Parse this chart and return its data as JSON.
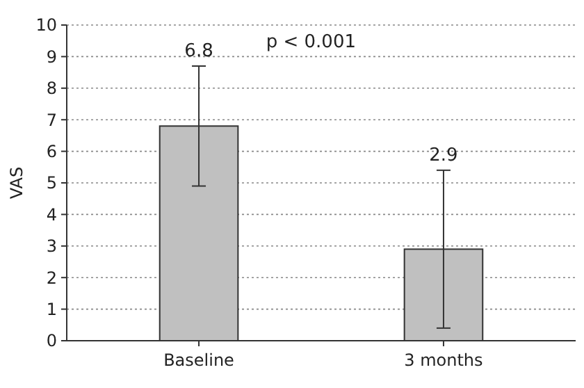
{
  "chart_data": {
    "type": "bar",
    "ylabel": "VAS",
    "categories": [
      "Baseline",
      "3 months"
    ],
    "values": [
      6.8,
      2.9
    ],
    "errors": [
      1.9,
      2.5
    ],
    "color": "#c0c0c0",
    "annotations": [
      "p < 0.001",
      {
        "text": "6.8",
        "x": "Baseline",
        "y": 8.7
      },
      {
        "text": "2.9",
        "x": "3 months",
        "y": 5.4
      }
    ],
    "ylim": [
      0,
      10
    ],
    "yticks": [
      0,
      1,
      2,
      3,
      4,
      5,
      6,
      7,
      8,
      9,
      10
    ],
    "grid": "y"
  }
}
